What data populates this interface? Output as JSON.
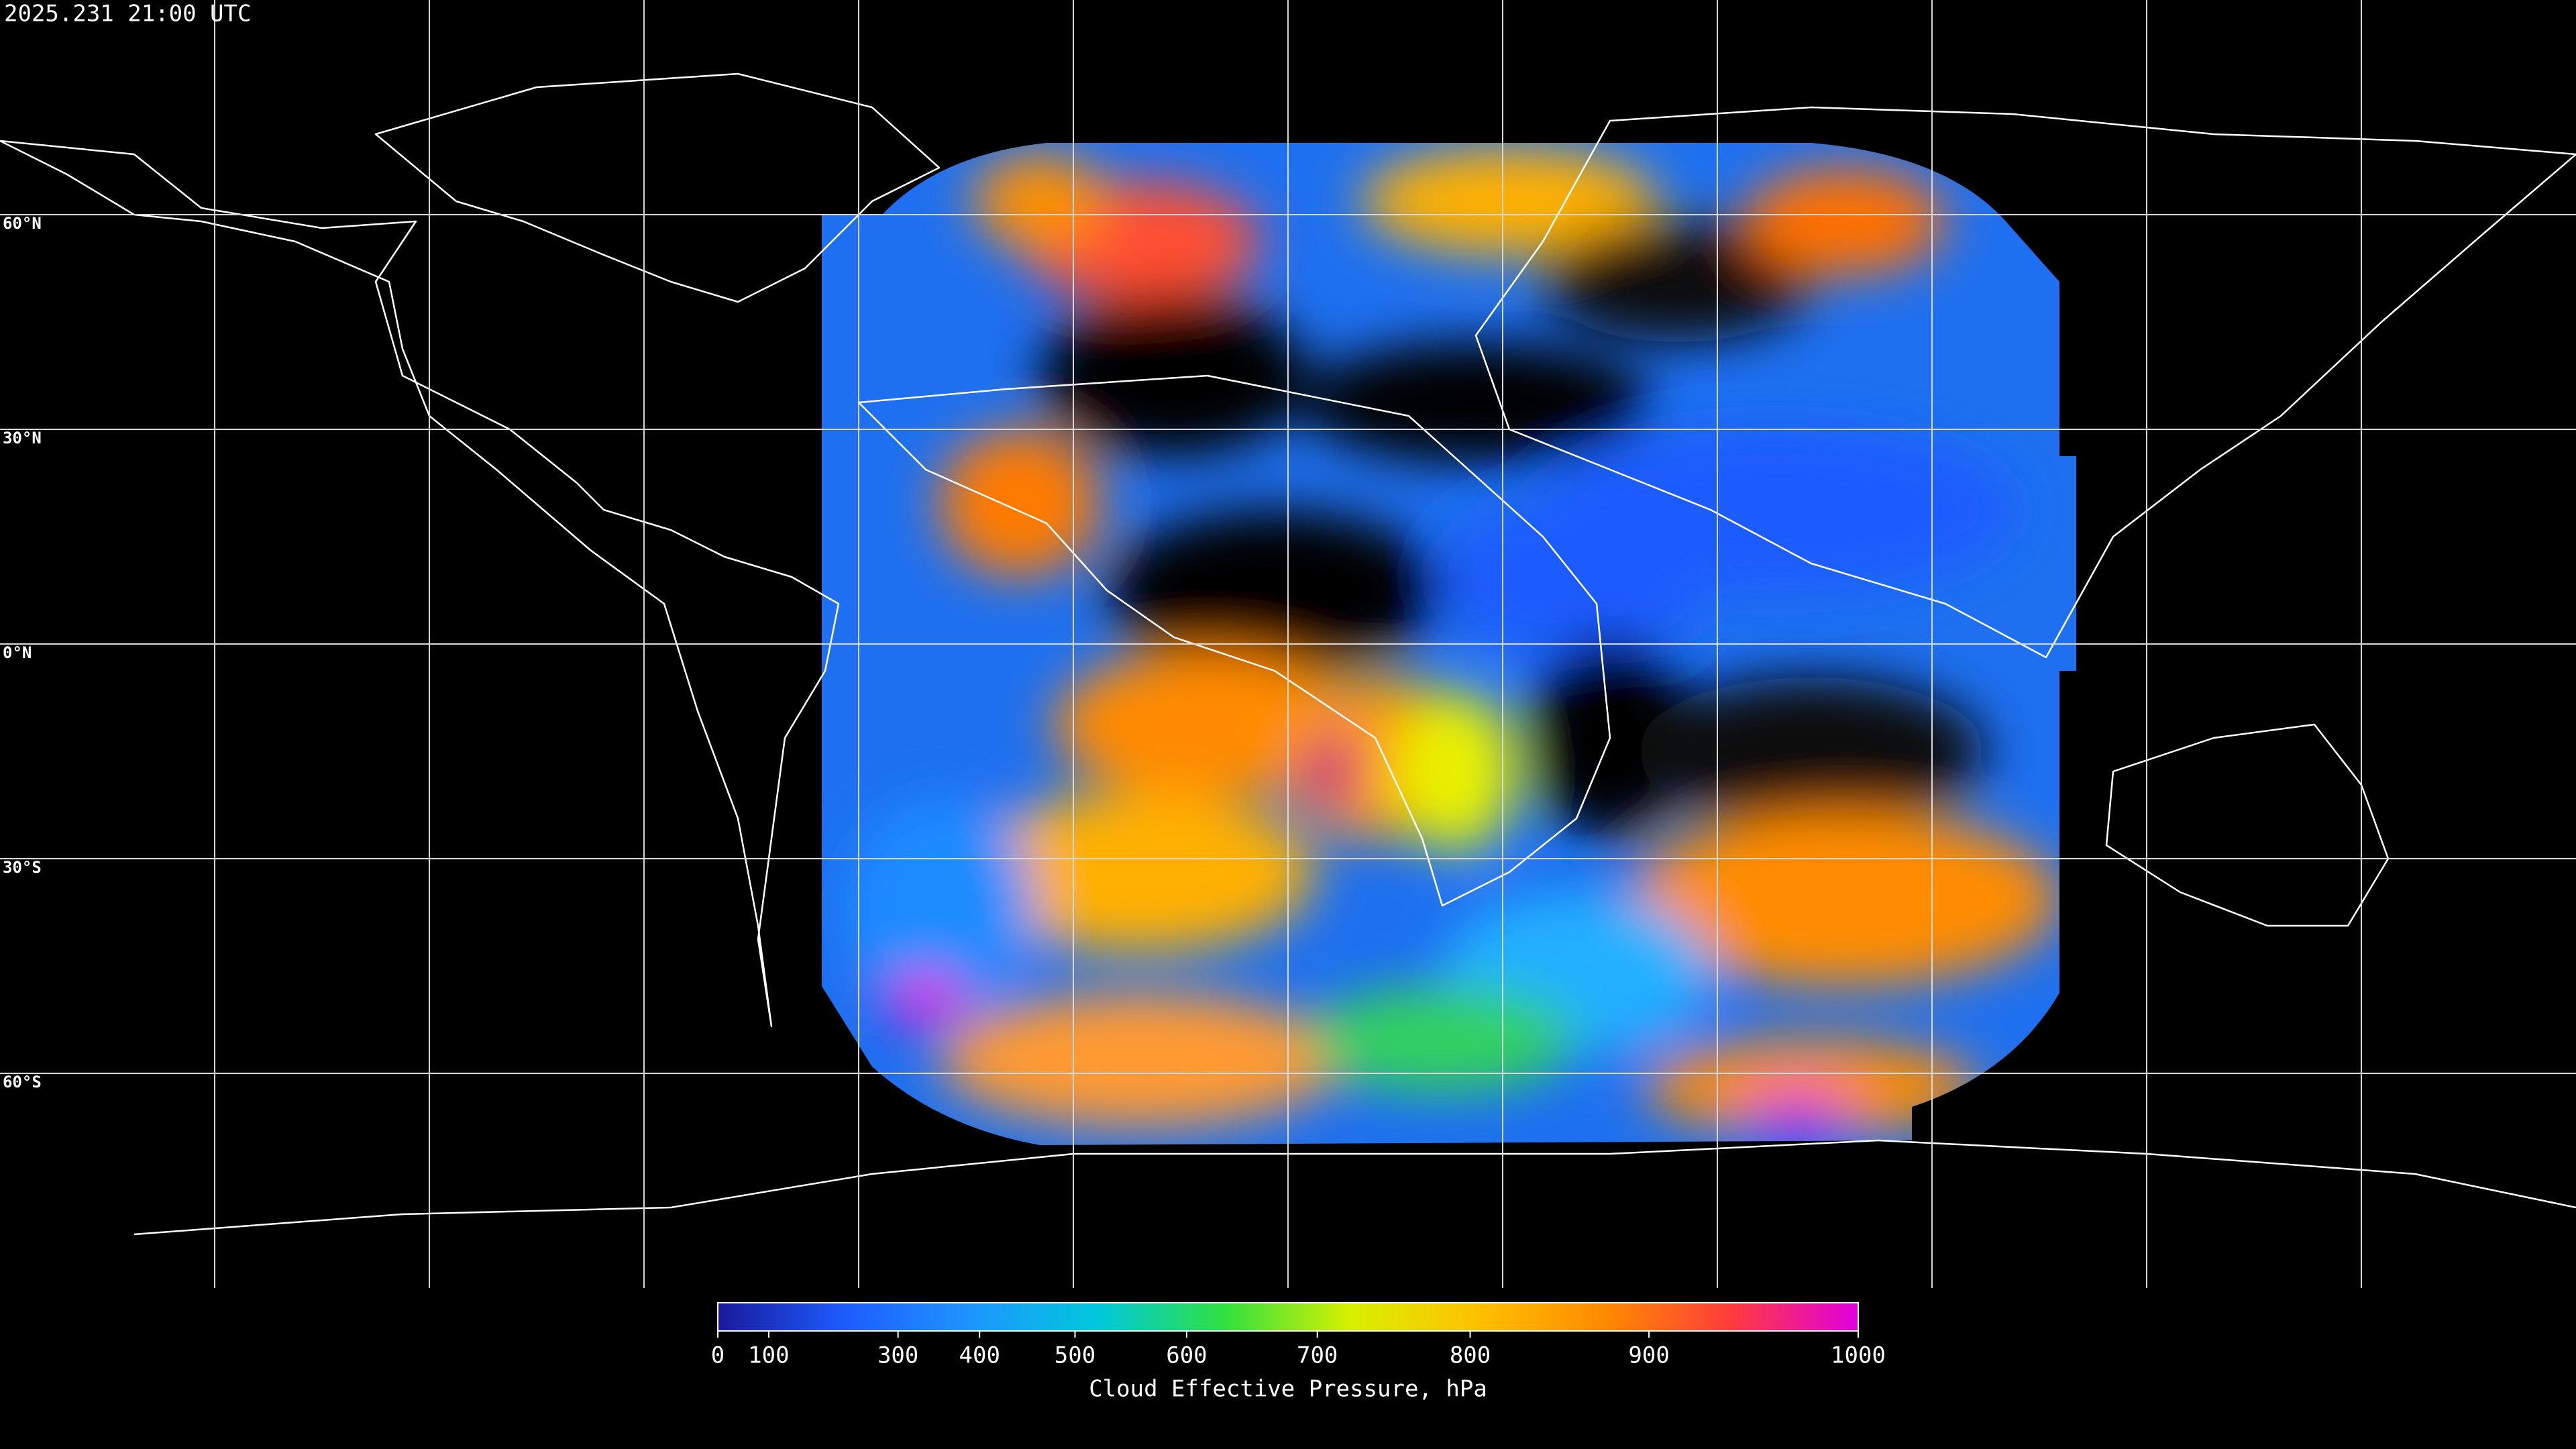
{
  "header": {
    "timestamp": "2025.231 21:00 UTC"
  },
  "map": {
    "lat_labels": [
      {
        "value": 60,
        "label": "60°N"
      },
      {
        "value": 30,
        "label": "30°N"
      },
      {
        "value": 0,
        "label": "0°N"
      },
      {
        "value": -30,
        "label": "30°S"
      },
      {
        "value": -60,
        "label": "60°S"
      }
    ]
  },
  "colorbar": {
    "title": "Cloud Effective Pressure, hPa",
    "range": [
      0,
      1000
    ],
    "ticks": [
      0,
      100,
      300,
      400,
      500,
      600,
      700,
      800,
      900,
      1000
    ],
    "colors": [
      "#1a1a9c",
      "#1e5cff",
      "#1e96ff",
      "#00c8dc",
      "#30e040",
      "#d8f000",
      "#ffc000",
      "#ff8a00",
      "#ff3c3c",
      "#e000e0"
    ]
  }
}
